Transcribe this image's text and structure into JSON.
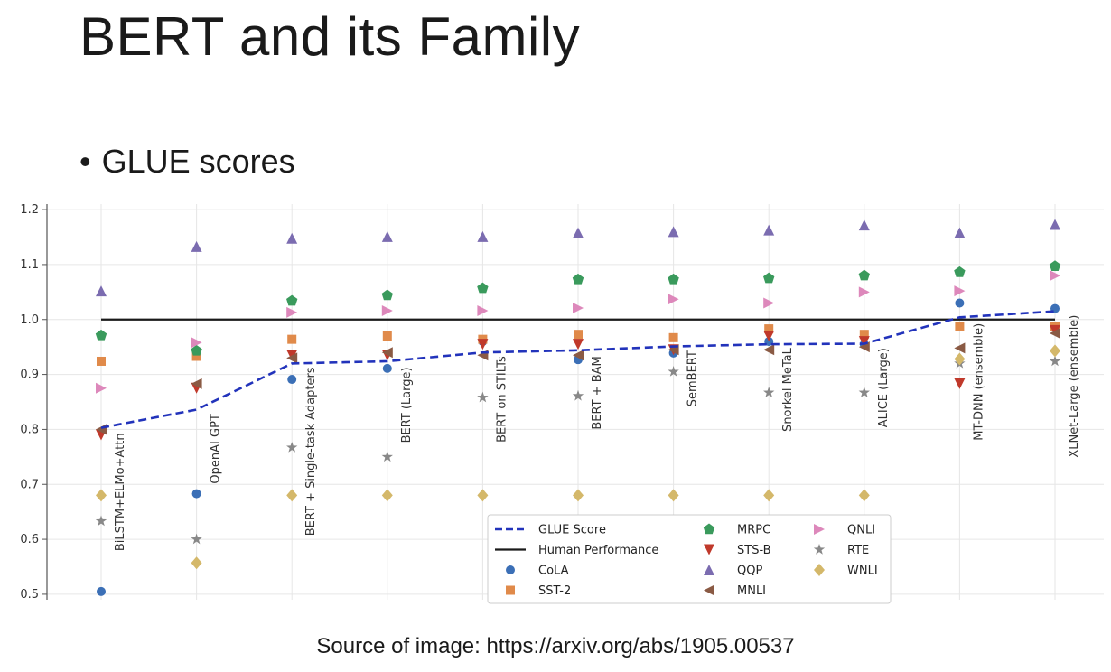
{
  "slide": {
    "title": "BERT and its Family",
    "bullet": "GLUE scores",
    "source": "Source of image: https://arxiv.org/abs/1905.00537"
  },
  "chart_data": {
    "type": "scatter",
    "categories": [
      "BiLSTM+ELMo+Attn",
      "OpenAI GPT",
      "BERT + Single-task Adapters",
      "BERT (Large)",
      "BERT on STILTs",
      "BERT + BAM",
      "SemBERT",
      "Snorkel MeTaL",
      "ALICE (Large)",
      "MT-DNN (ensemble)",
      "XLNet-Large (ensemble)"
    ],
    "ylim": [
      0.49,
      1.21
    ],
    "yticks": [
      0.5,
      0.6,
      0.7,
      0.8,
      0.9,
      1.0,
      1.1,
      1.2
    ],
    "ytick_labels": [
      "0.5",
      "0.6",
      "0.7",
      "0.8",
      "0.9",
      "1.0",
      "1.1",
      "1.2"
    ],
    "grid": true,
    "legend_position": "lower-center",
    "glue_score": {
      "name": "GLUE Score",
      "color": "#2233bb",
      "values": [
        0.803,
        0.836,
        0.92,
        0.924,
        0.94,
        0.944,
        0.951,
        0.955,
        0.956,
        1.004,
        1.015
      ]
    },
    "human_performance": {
      "name": "Human Performance",
      "color": "#1a1a1a",
      "value": 1.0
    },
    "series": [
      {
        "name": "CoLA",
        "marker": "circle",
        "color": "#3b6fb6",
        "values": [
          0.505,
          0.683,
          0.891,
          0.911,
          0.96,
          0.927,
          0.939,
          0.96,
          0.955,
          1.03,
          1.02
        ]
      },
      {
        "name": "SST-2",
        "marker": "square",
        "color": "#e08a4a",
        "values": [
          0.924,
          0.933,
          0.964,
          0.97,
          0.964,
          0.973,
          0.967,
          0.983,
          0.973,
          0.987,
          0.988
        ]
      },
      {
        "name": "MRPC",
        "marker": "pentagon",
        "color": "#3a9a5c",
        "values": [
          0.971,
          0.943,
          1.034,
          1.044,
          1.057,
          1.073,
          1.073,
          1.075,
          1.08,
          1.086,
          1.097
        ]
      },
      {
        "name": "STS-B",
        "marker": "triangle-down",
        "color": "#c0392b",
        "values": [
          0.79,
          0.875,
          0.935,
          0.935,
          0.955,
          0.955,
          0.945,
          0.97,
          0.96,
          0.883,
          0.98
        ]
      },
      {
        "name": "QQP",
        "marker": "triangle-up",
        "color": "#7b6cb0",
        "values": [
          1.052,
          1.133,
          1.148,
          1.151,
          1.151,
          1.158,
          1.16,
          1.163,
          1.172,
          1.158,
          1.173
        ]
      },
      {
        "name": "MNLI",
        "marker": "triangle-left",
        "color": "#8a5a44",
        "values": [
          0.8,
          0.883,
          0.93,
          0.94,
          0.935,
          0.935,
          0.945,
          0.945,
          0.95,
          0.948,
          0.975
        ]
      },
      {
        "name": "QNLI",
        "marker": "triangle-right",
        "color": "#dd88bb",
        "values": [
          0.875,
          0.958,
          1.013,
          1.016,
          1.016,
          1.021,
          1.037,
          1.03,
          1.05,
          1.052,
          1.08
        ]
      },
      {
        "name": "RTE",
        "marker": "star",
        "color": "#888888",
        "values": [
          0.633,
          0.6,
          0.767,
          0.75,
          0.858,
          0.861,
          0.905,
          0.867,
          0.867,
          0.92,
          0.924
        ]
      },
      {
        "name": "WNLI",
        "marker": "diamond",
        "color": "#d4b86a",
        "values": [
          0.68,
          0.557,
          0.68,
          0.68,
          0.68,
          0.68,
          0.68,
          0.68,
          0.68,
          0.928,
          0.943
        ]
      }
    ]
  }
}
